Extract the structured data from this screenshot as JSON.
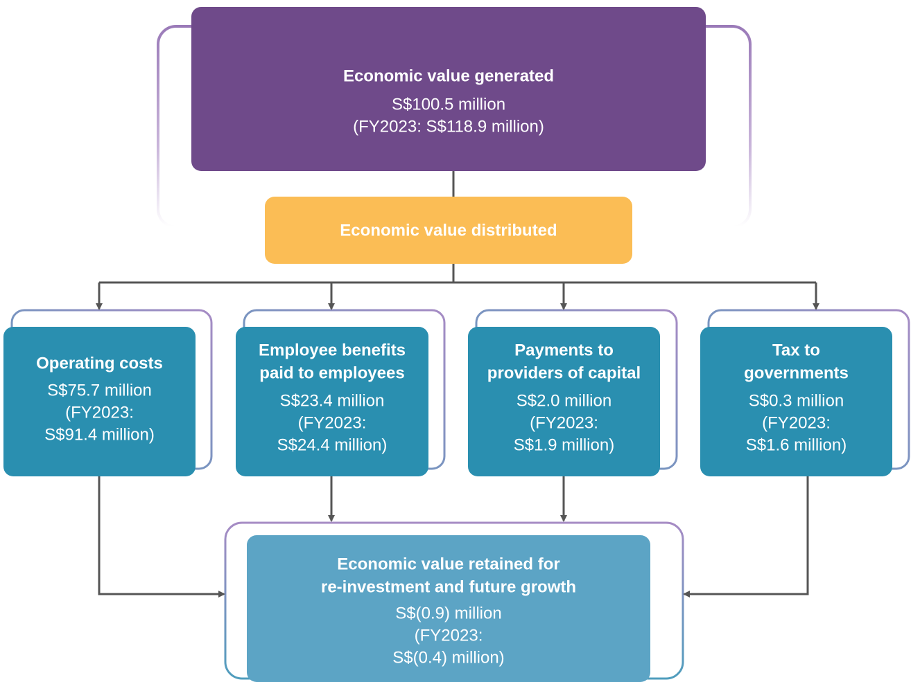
{
  "nodes": [
    {
      "title": [
        "Economic value generated"
      ],
      "details": [
        "S$100.5 million",
        "(FY2023: S$118.9 million)"
      ]
    },
    {
      "title": [
        "Economic value distributed"
      ],
      "details": []
    },
    {
      "title": [
        "Operating costs"
      ],
      "details": [
        "S$75.7 million",
        "(FY2023:",
        "S$91.4 million)"
      ]
    },
    {
      "title": [
        "Employee benefits",
        "paid to employees"
      ],
      "details": [
        "S$23.4 million",
        "(FY2023:",
        "S$24.4 million)"
      ]
    },
    {
      "title": [
        "Payments to",
        "providers of capital"
      ],
      "details": [
        "S$2.0 million",
        "(FY2023:",
        "S$1.9 million)"
      ]
    },
    {
      "title": [
        "Tax to",
        "governments"
      ],
      "details": [
        "S$0.3 million",
        "(FY2023:",
        "S$1.6 million)"
      ]
    },
    {
      "title": [
        "Economic value retained for",
        "re-investment and future growth"
      ],
      "details": [
        "S$(0.9) million",
        "(FY2023:",
        "S$(0.4) million)"
      ]
    }
  ]
}
